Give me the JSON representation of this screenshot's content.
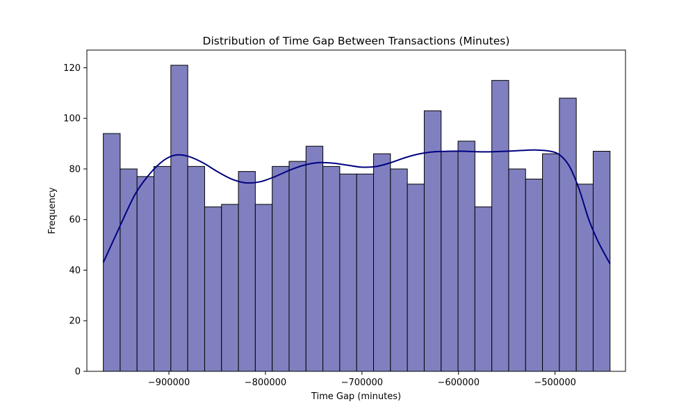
{
  "chart_data": {
    "type": "bar",
    "subtype": "histogram-with-kde",
    "title": "Distribution of Time Gap Between Transactions (Minutes)",
    "xlabel": "Time Gap (minutes)",
    "ylabel": "Frequency",
    "xlim": [
      -985000,
      -427000
    ],
    "ylim": [
      0,
      127
    ],
    "x_ticks": [
      -900000,
      -800000,
      -700000,
      -600000,
      -500000
    ],
    "x_tick_labels": [
      "−900000",
      "−800000",
      "−700000",
      "−600000",
      "−500000"
    ],
    "y_ticks": [
      0,
      20,
      40,
      60,
      80,
      100,
      120
    ],
    "y_tick_labels": [
      "0",
      "20",
      "40",
      "60",
      "80",
      "100",
      "120"
    ],
    "bin_range": [
      -968000,
      -443000
    ],
    "bins": 30,
    "values": [
      94,
      80,
      77,
      81,
      121,
      81,
      65,
      66,
      79,
      66,
      81,
      83,
      89,
      81,
      78,
      78,
      86,
      80,
      74,
      103,
      87,
      91,
      65,
      115,
      80,
      76,
      86,
      108,
      74,
      87
    ],
    "kde": {
      "x": [
        -968000,
        -950000,
        -935000,
        -920000,
        -905000,
        -893000,
        -880000,
        -865000,
        -850000,
        -835000,
        -820000,
        -805000,
        -790000,
        -775000,
        -760000,
        -745000,
        -730000,
        -715000,
        -700000,
        -685000,
        -670000,
        -655000,
        -640000,
        -625000,
        -610000,
        -595000,
        -580000,
        -565000,
        -550000,
        -535000,
        -520000,
        -505000,
        -495000,
        -485000,
        -475000,
        -465000,
        -455000,
        -443000
      ],
      "y": [
        43,
        58,
        70,
        78,
        83.5,
        85.5,
        85,
        82.5,
        79,
        76,
        74.5,
        75,
        77,
        79.5,
        81.5,
        82.5,
        82.3,
        81.5,
        80.7,
        81,
        82.5,
        84.5,
        86,
        86.8,
        87,
        87,
        86.8,
        86.8,
        87,
        87.3,
        87.5,
        87,
        85.5,
        81,
        72,
        60,
        51,
        42.5
      ]
    },
    "grid": false,
    "legend": "none",
    "colors": {
      "bar_fill": "#8080c0",
      "bar_edge": "#000000",
      "kde_line": "#000080"
    }
  }
}
